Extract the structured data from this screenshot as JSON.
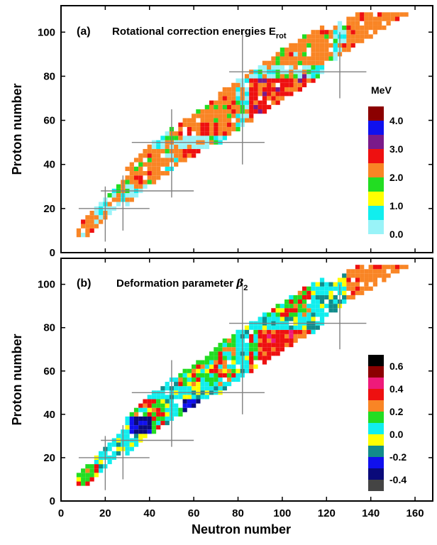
{
  "chart_data": [
    {
      "type": "heatmap",
      "panel_label": "(a)",
      "title": "Rotational correction energies E",
      "title_sub": "rot",
      "xlabel": "",
      "ylabel": "Proton number",
      "xlim": [
        0,
        168
      ],
      "ylim": [
        0,
        112
      ],
      "x_ticks": [
        "0",
        "20",
        "40",
        "60",
        "80",
        "100",
        "120",
        "140",
        "160"
      ],
      "y_ticks": [
        "0",
        "20",
        "40",
        "60",
        "80",
        "100"
      ],
      "magic_lines": [
        {
          "orientation": "h",
          "at": 20,
          "from": 8,
          "to": 40
        },
        {
          "orientation": "h",
          "at": 28,
          "from": 18,
          "to": 60
        },
        {
          "orientation": "h",
          "at": 50,
          "from": 32,
          "to": 92
        },
        {
          "orientation": "h",
          "at": 82,
          "from": 76,
          "to": 138
        },
        {
          "orientation": "v",
          "at": 20,
          "from": 5,
          "to": 30
        },
        {
          "orientation": "v",
          "at": 28,
          "from": 10,
          "to": 35
        },
        {
          "orientation": "v",
          "at": 50,
          "from": 25,
          "to": 65
        },
        {
          "orientation": "v",
          "at": 82,
          "from": 40,
          "to": 100
        },
        {
          "orientation": "v",
          "at": 126,
          "from": 70,
          "to": 100
        }
      ],
      "legend": {
        "unit": "MeV",
        "position": "right",
        "tick_labels": [
          "4.0",
          "3.0",
          "2.0",
          "1.0",
          "0.0"
        ],
        "bins": [
          {
            "range": "4.0-4.5",
            "color": "#8b0000"
          },
          {
            "range": "3.5-4.0",
            "color": "#1010ee"
          },
          {
            "range": "3.0-3.5",
            "color": "#7a1a8a"
          },
          {
            "range": "2.5-3.0",
            "color": "#ee1010"
          },
          {
            "range": "2.0-2.5",
            "color": "#f98525"
          },
          {
            "range": "1.5-2.0",
            "color": "#22dd22"
          },
          {
            "range": "1.0-1.5",
            "color": "#ffff00"
          },
          {
            "range": "0.5-1.0",
            "color": "#11eeee"
          },
          {
            "range": "0.0-0.5",
            "color": "#99f3f8"
          }
        ]
      },
      "regions": [
        {
          "desc": "light cyan band",
          "color": "#99f3f8"
        },
        {
          "desc": "orange dominated",
          "color": "#f98525"
        },
        {
          "desc": "red core",
          "color": "#ee1010"
        },
        {
          "desc": "green edges",
          "color": "#22dd22"
        }
      ]
    },
    {
      "type": "heatmap",
      "panel_label": "(b)",
      "title": "Deformation parameter ",
      "title_symbol": "β",
      "title_sub": "2",
      "xlabel": "Neutron number",
      "ylabel": "Proton number",
      "xlim": [
        0,
        168
      ],
      "ylim": [
        0,
        112
      ],
      "x_ticks": [
        "0",
        "20",
        "40",
        "60",
        "80",
        "100",
        "120",
        "140",
        "160"
      ],
      "y_ticks": [
        "0",
        "20",
        "40",
        "60",
        "80",
        "100"
      ],
      "magic_lines": [
        {
          "orientation": "h",
          "at": 20,
          "from": 8,
          "to": 40
        },
        {
          "orientation": "h",
          "at": 28,
          "from": 18,
          "to": 60
        },
        {
          "orientation": "h",
          "at": 50,
          "from": 32,
          "to": 92
        },
        {
          "orientation": "h",
          "at": 82,
          "from": 76,
          "to": 138
        },
        {
          "orientation": "v",
          "at": 20,
          "from": 5,
          "to": 30
        },
        {
          "orientation": "v",
          "at": 28,
          "from": 10,
          "to": 35
        },
        {
          "orientation": "v",
          "at": 50,
          "from": 25,
          "to": 65
        },
        {
          "orientation": "v",
          "at": 82,
          "from": 40,
          "to": 100
        },
        {
          "orientation": "v",
          "at": 126,
          "from": 70,
          "to": 100
        }
      ],
      "legend": {
        "unit": "",
        "position": "right",
        "tick_labels": [
          "0.6",
          "0.4",
          "0.2",
          "0.0",
          "-0.2",
          "-0.4"
        ],
        "bins": [
          {
            "range": "0.6-0.7",
            "color": "#000000"
          },
          {
            "range": "0.5-0.6",
            "color": "#8b0000"
          },
          {
            "range": "0.4-0.5",
            "color": "#ee1a7a"
          },
          {
            "range": "0.3-0.4",
            "color": "#ee1010"
          },
          {
            "range": "0.2-0.3",
            "color": "#f98525"
          },
          {
            "range": "0.1-0.2",
            "color": "#22dd22"
          },
          {
            "range": "0.0-0.1",
            "color": "#11eeee"
          },
          {
            "range": "-0.1-0.0",
            "color": "#ffff00"
          },
          {
            "range": "-0.2--0.1",
            "color": "#118b8b"
          },
          {
            "range": "-0.3--0.2",
            "color": "#1010ee"
          },
          {
            "range": "-0.4--0.3",
            "color": "#0a0a7a"
          },
          {
            "range": "-0.5--0.4",
            "color": "#444444"
          }
        ]
      }
    }
  ]
}
